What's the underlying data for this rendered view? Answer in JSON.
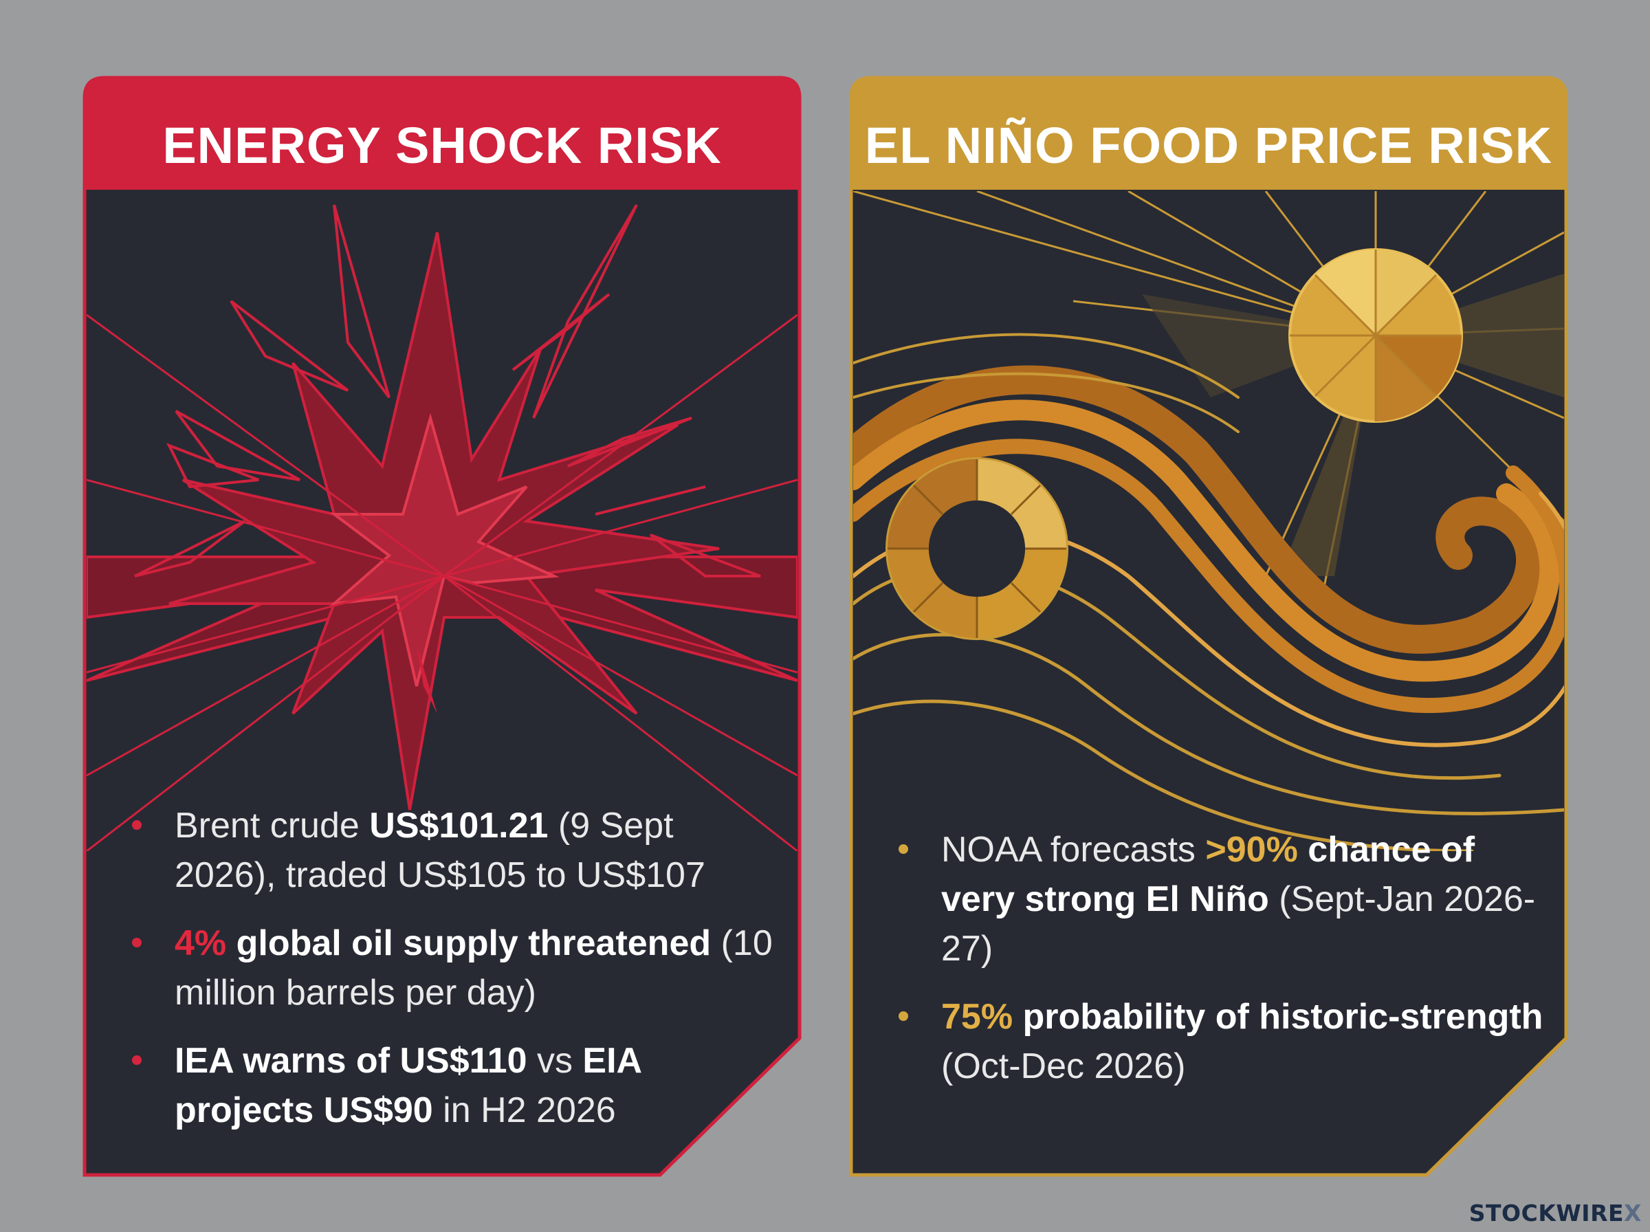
{
  "cards": [
    {
      "title": "ENERGY SHOCK RISK",
      "accent_color": "#d0213d",
      "illustration": "explosion-burst",
      "bullets": [
        {
          "t1": "Brent crude ",
          "b1": "US$101.21",
          "t2": " (9 Sept 2026), traded US$105 to US$107"
        },
        {
          "a1": "4%",
          "b1": " global oil supply threatened",
          "t2": " (10 million barrels per day)"
        },
        {
          "b1": "IEA warns of US$110",
          "t2": " vs ",
          "b2": "EIA projects US$90",
          "t3": " in H2 2026"
        }
      ]
    },
    {
      "title": "EL NIÑO FOOD PRICE RISK",
      "accent_color": "#c99a36",
      "illustration": "sun-and-wave",
      "bullets": [
        {
          "t1": "NOAA forecasts ",
          "a1": ">90%",
          "b1": " chance of very strong El Niño",
          "t2": " (Sept-Jan 2026-27)"
        },
        {
          "a1": "75%",
          "b1": " probability of historic-strength",
          "t2": " (Oct-Dec 2026)"
        }
      ]
    }
  ],
  "watermark": {
    "brand": "STOCKWIRE",
    "mark": "X"
  },
  "colors": {
    "background": "#9b9c9e",
    "panel": "#272a33",
    "red": "#d0213d",
    "gold": "#c99a36"
  }
}
